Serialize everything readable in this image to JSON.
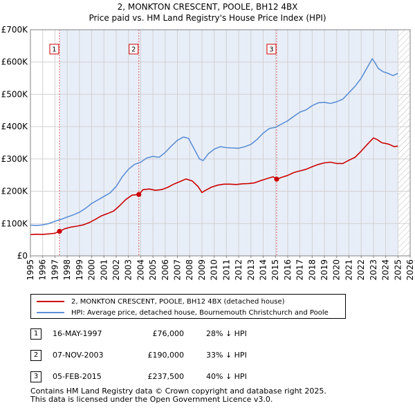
{
  "chart_data": {
    "type": "line",
    "title": "2, MONKTON CRESCENT, POOLE, BH12 4BX",
    "subtitle": "Price paid vs. HM Land Registry's House Price Index (HPI)",
    "xlabel": "",
    "ylabel": "",
    "xlim": [
      1995,
      2026
    ],
    "ylim": [
      0,
      700000
    ],
    "x_ticks": [
      1995,
      1996,
      1997,
      1998,
      1999,
      2000,
      2001,
      2002,
      2003,
      2004,
      2005,
      2006,
      2007,
      2008,
      2009,
      2010,
      2011,
      2012,
      2013,
      2014,
      2015,
      2016,
      2017,
      2018,
      2019,
      2020,
      2021,
      2022,
      2023,
      2024,
      2025,
      2026
    ],
    "y_ticks": [
      {
        "value": 0,
        "label": "£0"
      },
      {
        "value": 100000,
        "label": "£100K"
      },
      {
        "value": 200000,
        "label": "£200K"
      },
      {
        "value": 300000,
        "label": "£300K"
      },
      {
        "value": 400000,
        "label": "£400K"
      },
      {
        "value": 500000,
        "label": "£500K"
      },
      {
        "value": 600000,
        "label": "£600K"
      },
      {
        "value": 700000,
        "label": "£700K"
      }
    ],
    "grid": true,
    "hatched_from": 2025.0,
    "shaded_from": 1997.37,
    "series": [
      {
        "name": "2, MONKTON CRESCENT, POOLE, BH12 4BX (detached house)",
        "color": "#cc0000",
        "x": [
          1995,
          1995.5,
          1996,
          1996.5,
          1997,
          1997.37,
          1997.8,
          1998.3,
          1998.8,
          1999.3,
          1999.8,
          2000.3,
          2000.8,
          2001.3,
          2001.8,
          2002.3,
          2002.8,
          2003.3,
          2003.85,
          2004.2,
          2004.7,
          2005.2,
          2005.7,
          2006.2,
          2006.7,
          2007.2,
          2007.7,
          2008.2,
          2008.7,
          2009.0,
          2009.3,
          2009.8,
          2010.3,
          2010.8,
          2011.3,
          2011.8,
          2012.3,
          2012.8,
          2013.3,
          2013.8,
          2014.3,
          2014.8,
          2015.1,
          2015.5,
          2016.0,
          2016.5,
          2017.0,
          2017.5,
          2018.0,
          2018.5,
          2019.0,
          2019.5,
          2020.0,
          2020.5,
          2021.0,
          2021.5,
          2022.0,
          2022.5,
          2023.0,
          2023.3,
          2023.7,
          2024.0,
          2024.3,
          2024.7,
          2025.0
        ],
        "y": [
          66000,
          67000,
          66500,
          68000,
          70000,
          76000,
          84000,
          89000,
          92000,
          96000,
          103000,
          113000,
          124000,
          131000,
          139000,
          156000,
          175000,
          188000,
          190000,
          205000,
          207000,
          203000,
          205000,
          212000,
          222000,
          230000,
          238000,
          232000,
          214000,
          196000,
          203000,
          213000,
          219000,
          222000,
          222000,
          221000,
          223000,
          224000,
          226000,
          233000,
          239000,
          245000,
          237500,
          243000,
          249000,
          258000,
          263000,
          268000,
          276000,
          283000,
          288000,
          290000,
          286000,
          286000,
          296000,
          305000,
          324000,
          345000,
          365000,
          360000,
          350000,
          348000,
          345000,
          338000,
          340000
        ]
      },
      {
        "name": "HPI: Average price, detached house, Bournemouth Christchurch and Poole",
        "color": "#5b8fd6",
        "x": [
          1995,
          1995.5,
          1996,
          1996.5,
          1997,
          1997.5,
          1998,
          1998.5,
          1999,
          1999.5,
          2000,
          2000.5,
          2001,
          2001.5,
          2002,
          2002.5,
          2003,
          2003.5,
          2004,
          2004.5,
          2005,
          2005.5,
          2006,
          2006.5,
          2007,
          2007.5,
          2007.9,
          2008.3,
          2008.8,
          2009.1,
          2009.5,
          2010,
          2010.5,
          2011,
          2011.5,
          2012,
          2012.5,
          2013,
          2013.5,
          2014,
          2014.5,
          2015,
          2015.5,
          2016,
          2016.5,
          2017,
          2017.5,
          2018,
          2018.5,
          2019,
          2019.5,
          2020,
          2020.5,
          2021,
          2021.5,
          2022,
          2022.3,
          2022.6,
          2022.9,
          2023.1,
          2023.4,
          2023.8,
          2024.2,
          2024.6,
          2025.0
        ],
        "y": [
          95000,
          94000,
          96000,
          100000,
          107000,
          113000,
          120000,
          127000,
          135000,
          147000,
          162000,
          173000,
          184000,
          195000,
          215000,
          245000,
          268000,
          283000,
          290000,
          303000,
          308000,
          305000,
          320000,
          340000,
          358000,
          368000,
          364000,
          336000,
          300000,
          295000,
          315000,
          330000,
          338000,
          335000,
          334000,
          333000,
          338000,
          345000,
          360000,
          380000,
          394000,
          398000,
          408000,
          418000,
          432000,
          445000,
          452000,
          465000,
          474000,
          475000,
          472000,
          477000,
          485000,
          505000,
          525000,
          550000,
          570000,
          590000,
          610000,
          600000,
          580000,
          570000,
          565000,
          558000,
          565000
        ]
      }
    ],
    "sales": [
      {
        "num": "1",
        "x": 1997.37,
        "date": "16-MAY-1997",
        "price_value": 76000,
        "price": "£76,000",
        "hpi": "28% ↓ HPI"
      },
      {
        "num": "2",
        "x": 2003.85,
        "date": "07-NOV-2003",
        "price_value": 190000,
        "price": "£190,000",
        "hpi": "33% ↓ HPI"
      },
      {
        "num": "3",
        "x": 2015.1,
        "date": "05-FEB-2015",
        "price_value": 237500,
        "price": "£237,500",
        "hpi": "40% ↓ HPI"
      }
    ]
  },
  "legend": {
    "items": [
      {
        "label": "2, MONKTON CRESCENT, POOLE, BH12 4BX (detached house)",
        "color": "#cc0000"
      },
      {
        "label": "HPI: Average price, detached house, Bournemouth Christchurch and Poole",
        "color": "#5b8fd6"
      }
    ]
  },
  "footer": {
    "line1": "Contains HM Land Registry data © Crown copyright and database right 2025.",
    "line2": "This data is licensed under the Open Government Licence v3.0."
  }
}
